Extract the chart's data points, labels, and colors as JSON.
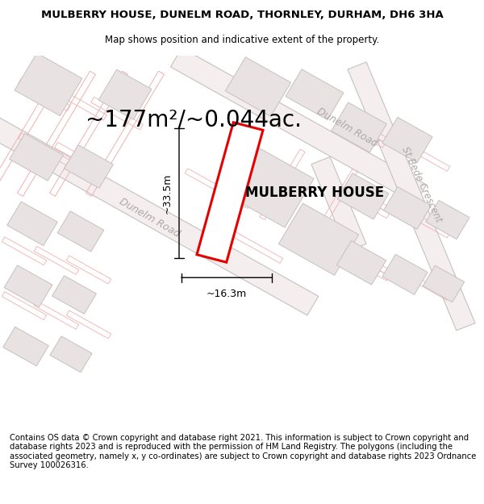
{
  "title_line1": "MULBERRY HOUSE, DUNELM ROAD, THORNLEY, DURHAM, DH6 3HA",
  "title_line2": "Map shows position and indicative extent of the property.",
  "area_text": "~177m²/~0.044ac.",
  "property_label": "MULBERRY HOUSE",
  "dim_width": "~16.3m",
  "dim_height": "~33.5m",
  "road_label_left": "Dunelm Road",
  "road_label_top": "Dunelm Road",
  "road_label_right": "St Bede Crescent",
  "footer_text": "Contains OS data © Crown copyright and database right 2021. This information is subject to Crown copyright and database rights 2023 and is reproduced with the permission of HM Land Registry. The polygons (including the associated geometry, namely x, y co-ordinates) are subject to Crown copyright and database rights 2023 Ordnance Survey 100026316.",
  "bg_color": "#ffffff",
  "map_bg": "#f7f2f2",
  "road_line_color": "#c8c0c0",
  "road_fill_color": "#f5eeee",
  "plot_line_color": "#f0b0b0",
  "building_fill": "#e8e2e2",
  "building_edge": "#c8c0c0",
  "red_outline": "#e60000",
  "dim_line_color": "#000000",
  "road_label_color": "#b0a8a8",
  "title_fontsize": 9.5,
  "subtitle_fontsize": 8.5,
  "area_fontsize": 20,
  "label_fontsize": 12,
  "footer_fontsize": 7.2,
  "road_label_fontsize": 9
}
